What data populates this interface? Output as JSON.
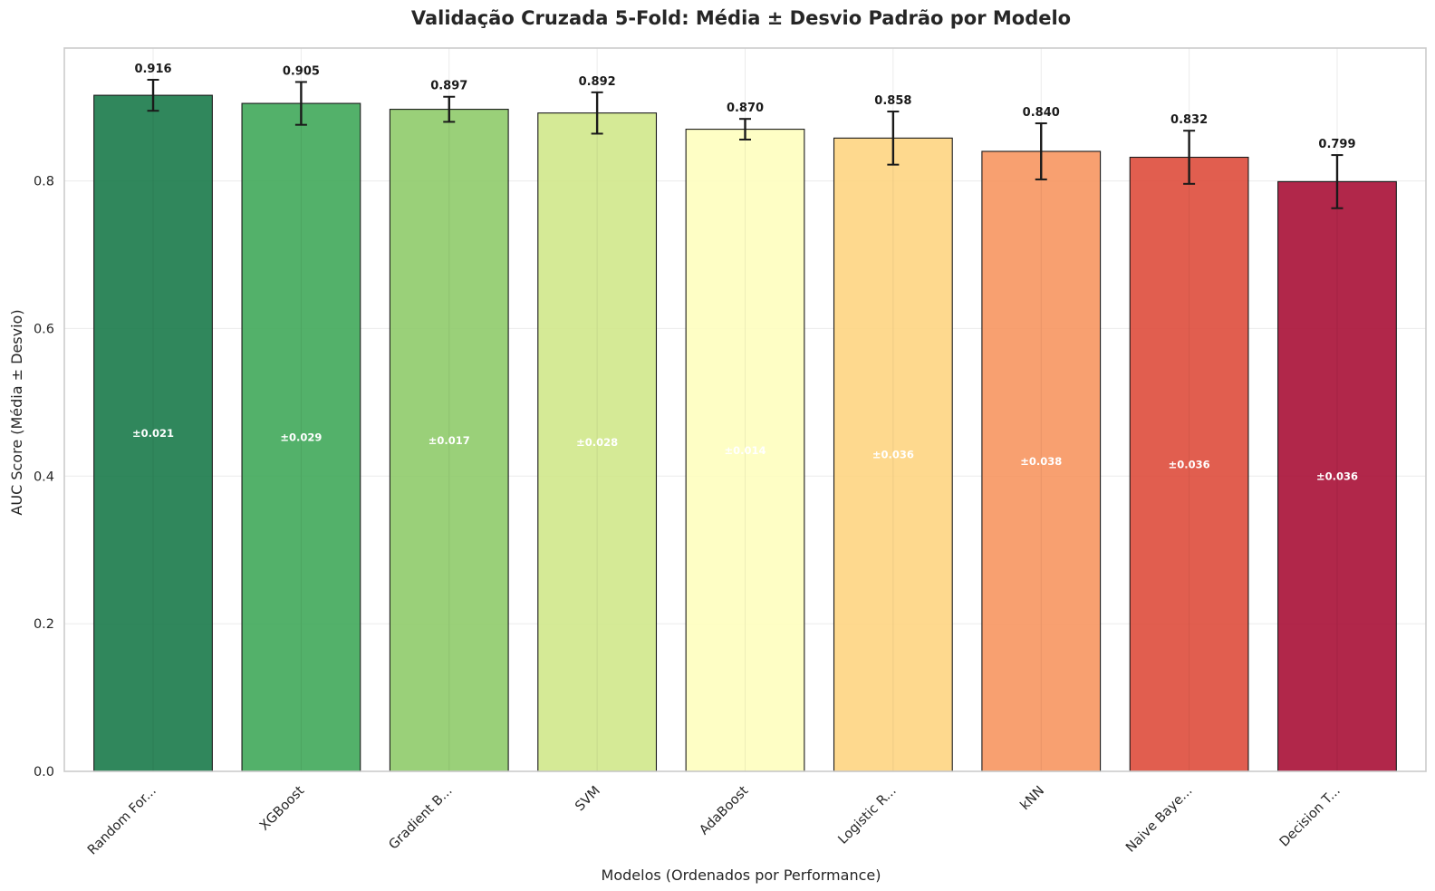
{
  "chart_data": {
    "type": "bar",
    "title": "Validação Cruzada 5-Fold: Média ± Desvio Padrão por Modelo",
    "xlabel": "Modelos (Ordenados por Performance)",
    "ylabel": "AUC Score (Média ± Desvio)",
    "ylim": [
      0,
      0.98
    ],
    "yticks": [
      0.0,
      0.2,
      0.4,
      0.6,
      0.8
    ],
    "ytick_labels": [
      "0.0",
      "0.2",
      "0.4",
      "0.6",
      "0.8"
    ],
    "grid": true,
    "error_bars": true,
    "categories": [
      "Random For...",
      "XGBoost",
      "Gradient B...",
      "SVM",
      "AdaBoost",
      "Logistic R...",
      "kNN",
      "Naive Baye...",
      "Decision T..."
    ],
    "values": [
      0.916,
      0.905,
      0.897,
      0.892,
      0.87,
      0.858,
      0.84,
      0.832,
      0.799
    ],
    "errors": [
      0.021,
      0.029,
      0.017,
      0.028,
      0.014,
      0.036,
      0.038,
      0.036,
      0.036
    ],
    "value_labels": [
      "0.916",
      "0.905",
      "0.897",
      "0.892",
      "0.870",
      "0.858",
      "0.840",
      "0.832",
      "0.799"
    ],
    "error_labels": [
      "±0.021",
      "±0.029",
      "±0.017",
      "±0.028",
      "±0.014",
      "±0.036",
      "±0.038",
      "±0.036",
      "±0.036"
    ],
    "colors": [
      "#1a7a4a",
      "#40a85a",
      "#8fcb6a",
      "#d0e88b",
      "#fefebf",
      "#fed582",
      "#f79660",
      "#de4c3c",
      "#a80f36"
    ]
  }
}
